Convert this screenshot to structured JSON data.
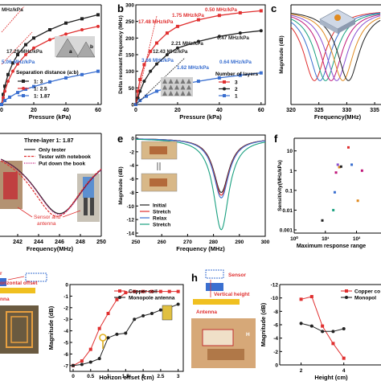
{
  "colors": {
    "red": "#e03030",
    "black": "#222222",
    "blue": "#3a6fd0",
    "green": "#1aa080",
    "magenta": "#c0187a",
    "axis": "#000000"
  },
  "panels": {
    "a": {
      "letter": "",
      "xlabel": "Pressure (kPa)",
      "xticks": [
        "0",
        "20",
        "40",
        "60"
      ],
      "labels": [
        "MHz/kPa",
        "17.29 MHz/kPa",
        "5.06 MHz/kPa"
      ],
      "legend_title": "Separation distance (a:b)",
      "diagram_labels": [
        "a",
        "b"
      ],
      "legend": [
        "1:  3",
        "1:  2.5",
        "1:  1.87"
      ]
    },
    "b": {
      "letter": "b",
      "ylabel": "Delta resonant frequency (MHz)",
      "xlabel": "Pressure (kPa)",
      "xticks": [
        "0",
        "20",
        "40",
        "60"
      ],
      "yticks": [
        "0",
        "50",
        "100",
        "150",
        "200",
        "250",
        "300"
      ],
      "labels": [
        "0.50 MHz/kPa",
        "1.75 MHz/kPa",
        "17.48 MHz/kPa",
        "0.47 MHz/kPa",
        "2.21 MHz/kPa",
        "12.43 MHz/kPa",
        "3.66 MHz/kPa",
        "0.64 MHz/kPa",
        "1.62 MHz/kPa"
      ],
      "legend_title": "Number of layers",
      "legend": [
        "3",
        "2",
        "1"
      ]
    },
    "c": {
      "letter": "c",
      "ylabel": "Magnitude (dB)",
      "xlabel": "Frequency(MHz)",
      "xticks": [
        "320",
        "325",
        "330",
        "335"
      ]
    },
    "d": {
      "letter": "",
      "title": "Three-layer 1:  1.87",
      "legend": [
        "Only tester",
        "Tester with notebook",
        "Put down the book"
      ],
      "xlabel": "Frequency(MHz)",
      "xticks": [
        "242",
        "244",
        "246",
        "248",
        "250"
      ],
      "annotation": [
        "Sensor and",
        "antenna"
      ]
    },
    "e": {
      "letter": "e",
      "ylabel": "Magnitude (dB)",
      "xlabel": "Frequency (MHz)",
      "xticks": [
        "250",
        "260",
        "270",
        "280",
        "290",
        "300"
      ],
      "yticks": [
        "0",
        "-2",
        "-4",
        "-6",
        "-8",
        "-10",
        "-12",
        "-14"
      ],
      "legend": [
        "Initial",
        "Stretch",
        "Relax",
        "Stretch"
      ]
    },
    "f": {
      "letter": "f",
      "ylabel": "Sensitivity(MHz/kPa)",
      "xlabel": "Maximum response range",
      "yticks": [
        "10",
        "1",
        "0.1",
        "0.01",
        "0.001"
      ],
      "xticks": [
        "10⁰",
        "10¹",
        "10²",
        "10³"
      ]
    },
    "g": {
      "letter": "",
      "ylabel": "Magnitude (dB)",
      "xlabel": "Horizon offset (cm)",
      "xticks": [
        "0",
        "0.5",
        "1",
        "1.5",
        "2",
        "2.5",
        "3"
      ],
      "yticks": [
        "-7",
        "-6",
        "-5",
        "-4",
        "-3",
        "-2",
        "-1",
        "0"
      ],
      "legend": [
        "Copper coil",
        "Monopole antenna"
      ],
      "diagram_labels": [
        "r",
        "orizontal offset",
        "nna"
      ]
    },
    "h": {
      "letter": "h",
      "ylabel": "Magnitude (dB)",
      "xlabel": "Height (cm)",
      "xticks": [
        "2",
        "4",
        "6",
        "8"
      ],
      "yticks": [
        "-12",
        "-10",
        "-8",
        "-6",
        "-4",
        "-2",
        "0"
      ],
      "legend": [
        "Copper co",
        "Monopol"
      ],
      "diagram_labels": [
        "Sensor",
        "Vertical height",
        "Antenna",
        "H"
      ]
    }
  },
  "chart_data": [
    {
      "panel": "a",
      "type": "line",
      "xlim": [
        0,
        62
      ],
      "ylim": [
        0,
        300
      ],
      "series": [
        {
          "name": "1:  3",
          "color": "#222222",
          "x": [
            0,
            1,
            2,
            4,
            7,
            10,
            15,
            20,
            30,
            40,
            50,
            60
          ],
          "y": [
            0,
            30,
            55,
            90,
            125,
            150,
            180,
            200,
            225,
            245,
            258,
            270
          ]
        },
        {
          "name": "1:  2.5",
          "color": "#e03030",
          "x": [
            0,
            1,
            2,
            4,
            7,
            10,
            15,
            20,
            30,
            40,
            50,
            60
          ],
          "y": [
            0,
            20,
            40,
            70,
            100,
            122,
            150,
            170,
            195,
            212,
            225,
            235
          ]
        },
        {
          "name": "1:  1.87",
          "color": "#3a6fd0",
          "x": [
            0,
            2,
            5,
            10,
            15,
            20,
            30,
            40,
            50,
            60
          ],
          "y": [
            0,
            12,
            22,
            36,
            46,
            54,
            68,
            80,
            90,
            100
          ]
        }
      ]
    },
    {
      "panel": "b",
      "type": "line",
      "xlim": [
        0,
        62
      ],
      "ylim": [
        0,
        300
      ],
      "series": [
        {
          "name": "3",
          "color": "#e03030",
          "x": [
            0,
            1,
            2,
            4,
            7,
            10,
            15,
            20,
            30,
            40,
            50,
            60
          ],
          "y": [
            0,
            40,
            75,
            120,
            160,
            185,
            215,
            235,
            255,
            268,
            276,
            282
          ]
        },
        {
          "name": "2",
          "color": "#222222",
          "x": [
            0,
            1,
            2,
            4,
            7,
            10,
            15,
            20,
            30,
            40,
            50,
            60
          ],
          "y": [
            0,
            20,
            40,
            70,
            100,
            122,
            150,
            170,
            190,
            205,
            215,
            222
          ]
        },
        {
          "name": "1",
          "color": "#3a6fd0",
          "x": [
            0,
            2,
            5,
            10,
            15,
            20,
            30,
            40,
            50,
            60
          ],
          "y": [
            0,
            12,
            25,
            40,
            50,
            58,
            70,
            80,
            88,
            95
          ]
        }
      ]
    },
    {
      "panel": "c",
      "type": "line",
      "xlim": [
        320,
        337
      ],
      "ylim": [
        -12,
        0
      ],
      "series": [
        {
          "color": "#e03030",
          "x_center": 324.2,
          "depth": -9
        },
        {
          "color": "#3a6fd0",
          "x_center": 325.2,
          "depth": -9
        },
        {
          "color": "#1aa080",
          "x_center": 326.2,
          "depth": -9
        },
        {
          "color": "#c0187a",
          "x_center": 327.2,
          "depth": -9
        },
        {
          "color": "#8a4fd0",
          "x_center": 328.2,
          "depth": -9
        },
        {
          "color": "#e08a20",
          "x_center": 329.3,
          "depth": -9
        },
        {
          "color": "#222222",
          "x_center": 330.3,
          "depth": -9
        }
      ]
    },
    {
      "panel": "d",
      "type": "line",
      "xlim": [
        240,
        250
      ],
      "ylim": [
        -10,
        0
      ],
      "series": [
        {
          "name": "Only tester",
          "color": "#222222",
          "x_center": 246.0,
          "depth": -7.6
        },
        {
          "name": "Tester with notebook",
          "color": "#e03030",
          "x_center": 245.8,
          "depth": -7.9
        },
        {
          "name": "Put down the book",
          "color": "#c0187a",
          "x_center": 246.0,
          "depth": -7.7
        }
      ]
    },
    {
      "panel": "e",
      "type": "line",
      "xlim": [
        250,
        300
      ],
      "ylim": [
        -14,
        0
      ],
      "series": [
        {
          "name": "Initial",
          "color": "#222222",
          "x_center": 283,
          "depth": -8.0
        },
        {
          "name": "Stretch",
          "color": "#e03030",
          "x_center": 283,
          "depth": -8.4
        },
        {
          "name": "Relax",
          "color": "#3a6fd0",
          "x_center": 283,
          "depth": -8.8
        },
        {
          "name": "Stretch",
          "color": "#1aa080",
          "x_center": 283,
          "depth": -13.5
        }
      ]
    },
    {
      "panel": "f",
      "type": "scatter",
      "xlog": true,
      "ylog": true,
      "xlim": [
        1,
        2000
      ],
      "ylim": [
        0.001,
        30
      ],
      "points": [
        {
          "x": 8,
          "y": 0.003,
          "color": "#222222"
        },
        {
          "x": 18,
          "y": 0.01,
          "color": "#1aa080"
        },
        {
          "x": 20,
          "y": 0.08,
          "color": "#3a6fd0"
        },
        {
          "x": 22,
          "y": 0.8,
          "color": "#c0187a"
        },
        {
          "x": 25,
          "y": 2.0,
          "color": "#8a4fd0"
        },
        {
          "x": 28,
          "y": 1.5,
          "color": "#e08a20"
        },
        {
          "x": 32,
          "y": 1.6,
          "color": "#222222"
        },
        {
          "x": 55,
          "y": 15,
          "color": "#e03030"
        },
        {
          "x": 70,
          "y": 2.0,
          "color": "#3a6fd0"
        },
        {
          "x": 110,
          "y": 0.03,
          "color": "#e08a20"
        },
        {
          "x": 150,
          "y": 1.0,
          "color": "#c0187a"
        },
        {
          "x": 800,
          "y": 1.8,
          "color": "#e03030"
        },
        {
          "x": 850,
          "y": 0.9,
          "color": "#1aa080"
        },
        {
          "x": 850,
          "y": 0.5,
          "color": "#3a6fd0"
        },
        {
          "x": 850,
          "y": 0.25,
          "color": "#e08a20"
        },
        {
          "x": 850,
          "y": 0.1,
          "color": "#8a4fd0"
        },
        {
          "x": 850,
          "y": 0.05,
          "color": "#c0187a"
        },
        {
          "x": 850,
          "y": 0.02,
          "color": "#1aa080"
        },
        {
          "x": 850,
          "y": 0.01,
          "color": "#e03030"
        }
      ]
    },
    {
      "panel": "g",
      "type": "line",
      "xlim": [
        0,
        3.1
      ],
      "ylim": [
        -7.5,
        0
      ],
      "series": [
        {
          "name": "Copper coil",
          "color": "#e03030",
          "x": [
            0,
            0.25,
            0.5,
            0.75,
            1.0,
            1.25,
            1.5,
            1.75,
            2.0,
            2.25,
            2.5,
            2.75,
            3.0
          ],
          "y": [
            -7.0,
            -6.6,
            -5.6,
            -3.8,
            -2.5,
            -1.3,
            -0.7,
            -0.6,
            -0.6,
            -0.6,
            -0.6,
            -0.6,
            -0.6
          ]
        },
        {
          "name": "Monopole antenna",
          "color": "#222222",
          "x": [
            0,
            0.25,
            0.5,
            0.75,
            1.0,
            1.25,
            1.5,
            1.75,
            2.0,
            2.25,
            2.5,
            2.75,
            3.0
          ],
          "y": [
            -7.0,
            -6.9,
            -6.7,
            -6.4,
            -4.6,
            -4.3,
            -4.2,
            -3.0,
            -2.7,
            -2.5,
            -2.2,
            -2.0,
            -1.7
          ]
        }
      ]
    },
    {
      "panel": "h",
      "type": "line",
      "xlim": [
        1,
        8
      ],
      "ylim": [
        -12,
        0
      ],
      "series": [
        {
          "name": "Copper co",
          "color": "#e03030",
          "x": [
            2,
            2.5,
            3,
            3.5,
            4
          ],
          "y": [
            -9.8,
            -10.2,
            -5.8,
            -3.2,
            -1.0
          ]
        },
        {
          "name": "Monopol",
          "color": "#222222",
          "x": [
            2,
            2.5,
            3,
            3.5,
            4
          ],
          "y": [
            -6.2,
            -5.8,
            -5.0,
            -5.0,
            -5.4
          ]
        }
      ]
    }
  ]
}
